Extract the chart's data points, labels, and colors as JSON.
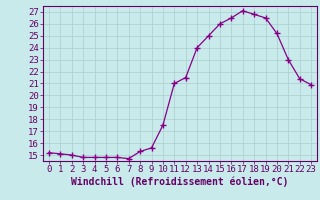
{
  "x": [
    0,
    1,
    2,
    3,
    4,
    5,
    6,
    7,
    8,
    9,
    10,
    11,
    12,
    13,
    14,
    15,
    16,
    17,
    18,
    19,
    20,
    21,
    22,
    23
  ],
  "y": [
    15.2,
    15.1,
    15.0,
    14.8,
    14.8,
    14.8,
    14.8,
    14.7,
    15.3,
    15.6,
    17.5,
    21.0,
    21.5,
    24.0,
    25.0,
    26.0,
    26.5,
    27.1,
    26.8,
    26.5,
    25.2,
    23.0,
    21.4,
    20.9
  ],
  "line_color": "#880088",
  "marker": "+",
  "marker_size": 4,
  "bg_color": "#c8eaea",
  "grid_color": "#aacccc",
  "axis_bg": "#c8eaea",
  "xlabel": "Windchill (Refroidissement éolien,°C)",
  "yticks": [
    15,
    16,
    17,
    18,
    19,
    20,
    21,
    22,
    23,
    24,
    25,
    26,
    27
  ],
  "xlim": [
    -0.5,
    23.5
  ],
  "ylim": [
    14.5,
    27.5
  ],
  "tick_color": "#660066",
  "label_color": "#660066",
  "spine_color": "#660066",
  "font_size": 6.5
}
